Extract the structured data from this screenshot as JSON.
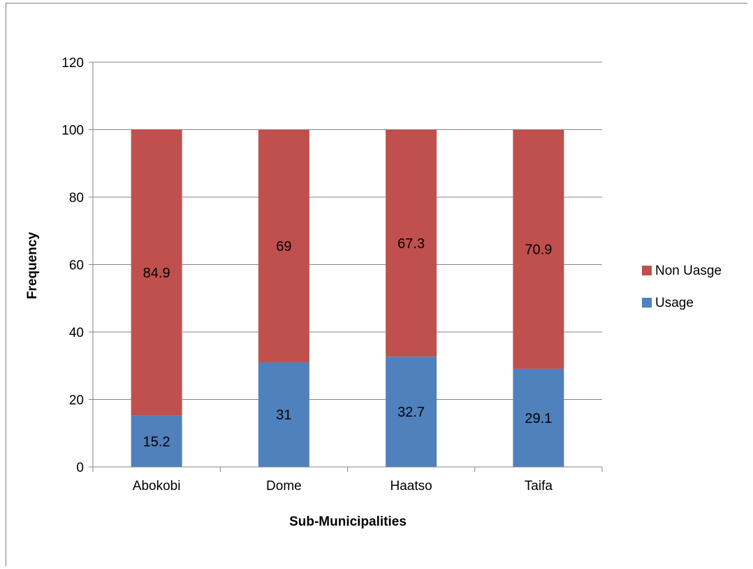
{
  "chart_data": {
    "type": "bar",
    "stacked": true,
    "categories": [
      "Abokobi",
      "Dome",
      "Haatso",
      "Taifa"
    ],
    "series": [
      {
        "name": "Usage",
        "values": [
          15.2,
          31,
          32.7,
          29.1
        ],
        "labels": [
          "15.2",
          "31",
          "32.7",
          "29.1"
        ],
        "color": "#4f81bd"
      },
      {
        "name": "Non Uasge",
        "values": [
          84.9,
          69,
          67.3,
          70.9
        ],
        "labels": [
          "84.9",
          "69",
          "67.3",
          "70.9"
        ],
        "color": "#c0504d"
      }
    ],
    "title": "",
    "xlabel": "Sub-Municipalities",
    "ylabel": "Frequency",
    "ylim": [
      0,
      120
    ],
    "yticks": [
      "0",
      "20",
      "40",
      "60",
      "80",
      "100",
      "120"
    ],
    "grid": true,
    "legend_position": "right",
    "legend_order": [
      "Non Uasge",
      "Usage"
    ]
  }
}
